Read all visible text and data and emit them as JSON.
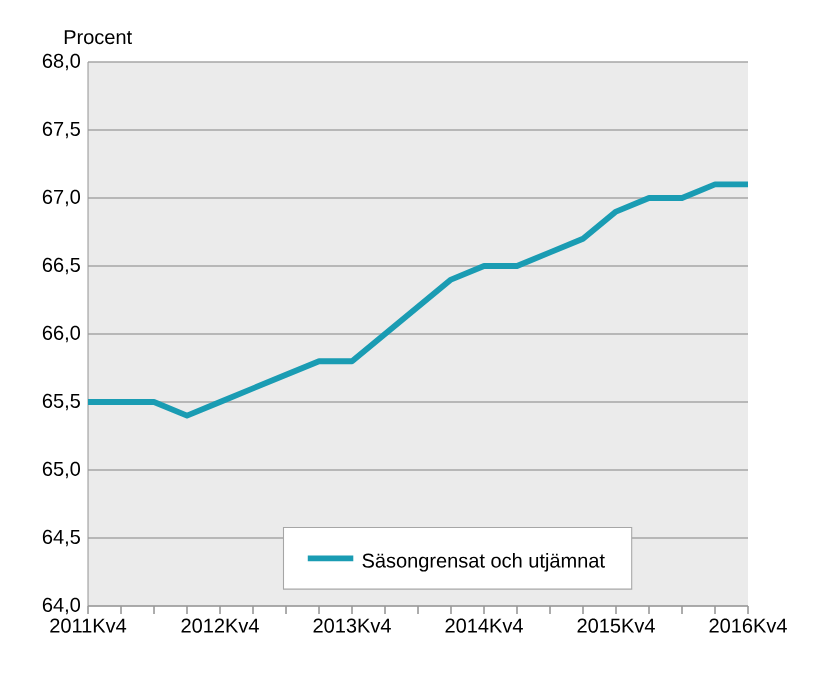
{
  "chart_data": {
    "type": "line",
    "ylabel": "Procent",
    "categories": [
      "2011Kv4",
      null,
      null,
      null,
      "2012Kv4",
      null,
      null,
      null,
      "2013Kv4",
      null,
      null,
      null,
      "2014Kv4",
      null,
      null,
      null,
      "2015Kv4",
      null,
      null,
      null,
      "2016Kv4"
    ],
    "series": [
      {
        "name": "Säsongrensat och utjämnat",
        "color": "#1a9cb3",
        "values": [
          65.5,
          65.5,
          65.5,
          65.4,
          65.5,
          65.6,
          65.7,
          65.8,
          65.8,
          66.0,
          66.2,
          66.4,
          66.5,
          66.5,
          66.6,
          66.7,
          66.9,
          67.0,
          67.0,
          67.1,
          67.1
        ]
      }
    ],
    "ylim": [
      64,
      68
    ],
    "yticks": [
      {
        "value": 64,
        "label": "64,0"
      },
      {
        "value": 64.5,
        "label": "64,5"
      },
      {
        "value": 65,
        "label": "65,0"
      },
      {
        "value": 65.5,
        "label": "65,5"
      },
      {
        "value": 66,
        "label": "66,0"
      },
      {
        "value": 66.5,
        "label": "66,5"
      },
      {
        "value": 67,
        "label": "67,0"
      },
      {
        "value": 67.5,
        "label": "67,5"
      },
      {
        "value": 68,
        "label": "68,0"
      }
    ],
    "grid": "y",
    "legend": "bottom",
    "marker": "none",
    "line_style": "solid"
  }
}
